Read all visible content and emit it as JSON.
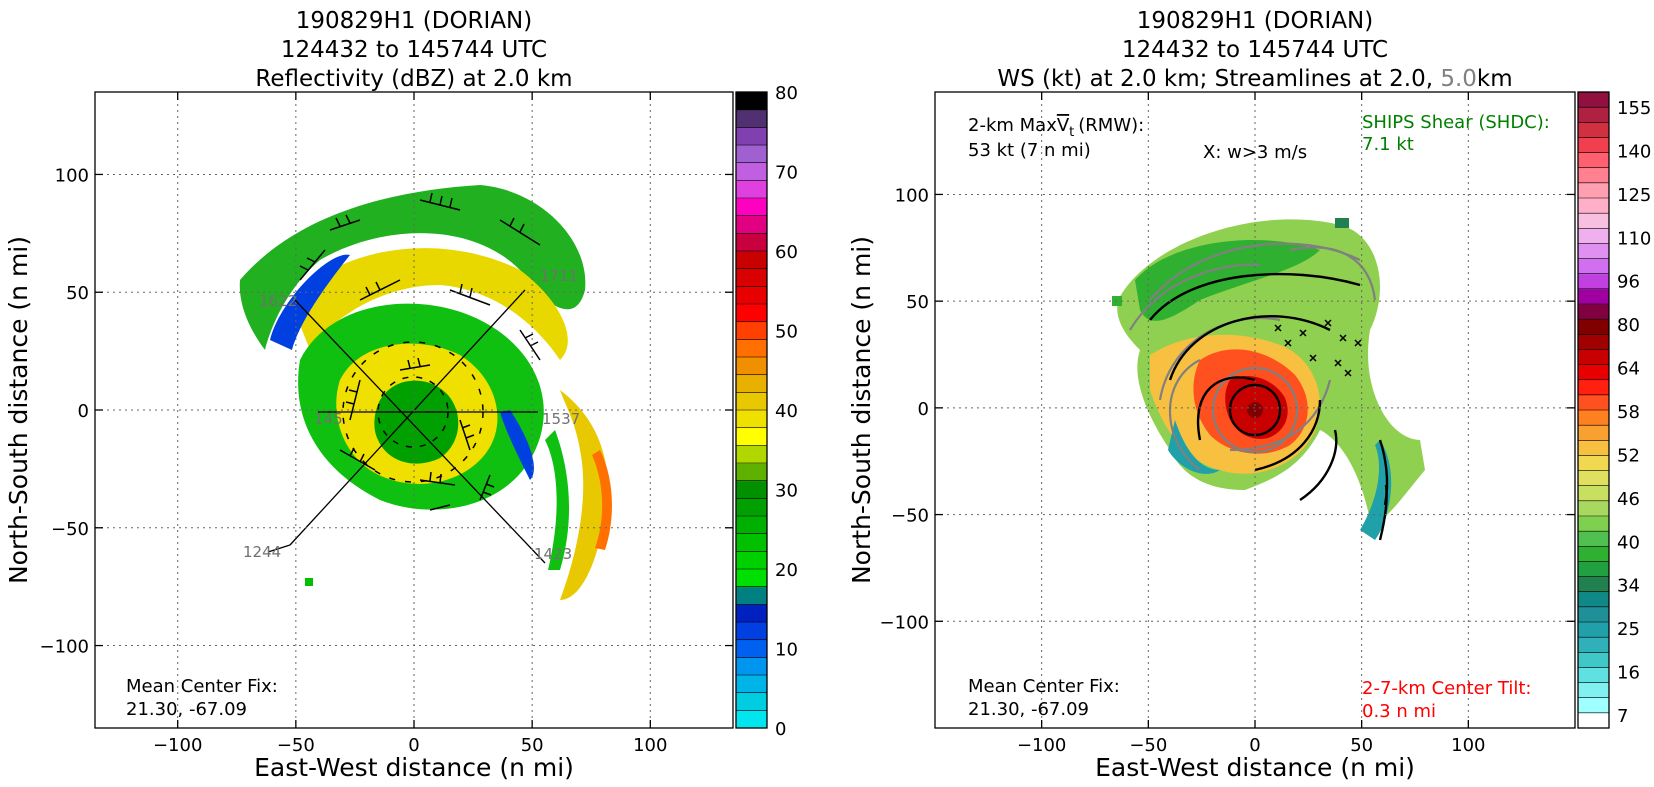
{
  "left": {
    "title": [
      "190829H1 (DORIAN)",
      "124432 to 145744 UTC",
      "Reflectivity (dBZ) at 2.0 km"
    ],
    "xlabel": "East-West distance (n mi)",
    "ylabel": "North-South distance (n mi)",
    "xticks": [
      "−100",
      "−50",
      "0",
      "50",
      "100"
    ],
    "yticks": [
      "100",
      "50",
      "0",
      "−50",
      "−100"
    ],
    "center_fix_label": "Mean Center Fix:",
    "center_fix_value": "21.30, -67.09",
    "leg_labels": [
      "1244",
      "1423",
      "145",
      "1537",
      "1622",
      "1711"
    ],
    "colorbar_ticks": [
      "80",
      "70",
      "60",
      "50",
      "40",
      "30",
      "20",
      "10",
      "0"
    ]
  },
  "right": {
    "title_l1": "190829H1 (DORIAN)",
    "title_l2": "124432 to 145744 UTC",
    "title_l3a": "WS (kt) at 2.0 km; Streamlines at 2.0,",
    "title_l3b": "5.0",
    "title_l3c": "km",
    "xlabel": "East-West distance (n mi)",
    "ylabel": "North-South distance (n mi)",
    "xticks": [
      "−100",
      "−50",
      "0",
      "50",
      "100"
    ],
    "yticks": [
      "100",
      "50",
      "0",
      "−50",
      "−100"
    ],
    "maxvt_label_a": "2-km Max",
    "maxvt_label_v": "V",
    "maxvt_label_t": "t",
    "maxvt_label_b": "(RMW):",
    "maxvt_value": "53 kt (7 n mi)",
    "w_note": "X: w>3 m/s",
    "shear_label": "SHIPS Shear (SHDC):",
    "shear_value": "7.1 kt",
    "center_fix_label": "Mean Center Fix:",
    "center_fix_value": "21.30, -67.09",
    "tilt_label": "2-7-km Center Tilt:",
    "tilt_value": "0.3 n mi",
    "colorbar_ticks": [
      "155",
      "140",
      "125",
      "110",
      "96",
      "80",
      "64",
      "58",
      "52",
      "46",
      "40",
      "34",
      "25",
      "16",
      "7"
    ]
  },
  "colors": {
    "gray_text": "#808080",
    "green_text": "#008000",
    "red_text": "#ff0000",
    "reflectivity_scale": [
      "#00e5ee",
      "#00cde0",
      "#00b4e8",
      "#0096f0",
      "#0060f0",
      "#0040e0",
      "#0020c0",
      "#008080",
      "#00e000",
      "#00d000",
      "#00c000",
      "#00b000",
      "#00a000",
      "#009000",
      "#60b000",
      "#b0d800",
      "#ffff00",
      "#f0e000",
      "#e8c800",
      "#e8b000",
      "#f09000",
      "#ff7000",
      "#ff4000",
      "#ff0000",
      "#e80000",
      "#d80000",
      "#c80000",
      "#c80040",
      "#e00080",
      "#ff00c0",
      "#e040e0",
      "#c060e0",
      "#a060d0",
      "#8040b0",
      "#503070",
      "#000000"
    ],
    "windspeed_scale": [
      "#ffffff",
      "#a0ffff",
      "#80f0f0",
      "#60e0e0",
      "#40c8c8",
      "#30b0b8",
      "#20a0a8",
      "#209098",
      "#108888",
      "#208050",
      "#20a040",
      "#30b030",
      "#50c050",
      "#80d050",
      "#a8d860",
      "#c8e060",
      "#e0e060",
      "#f0d850",
      "#f8c040",
      "#f8a030",
      "#ff8020",
      "#ff5020",
      "#ff2010",
      "#e80000",
      "#c80000",
      "#a00000",
      "#800000",
      "#800040",
      "#a000a0",
      "#c040e0",
      "#d070f0",
      "#e090f0",
      "#f0b0f0",
      "#f8c0e0",
      "#ffb0c8",
      "#ffa0b0",
      "#ff8090",
      "#ff6070",
      "#f04050",
      "#d03040",
      "#b02040",
      "#901040"
    ]
  }
}
